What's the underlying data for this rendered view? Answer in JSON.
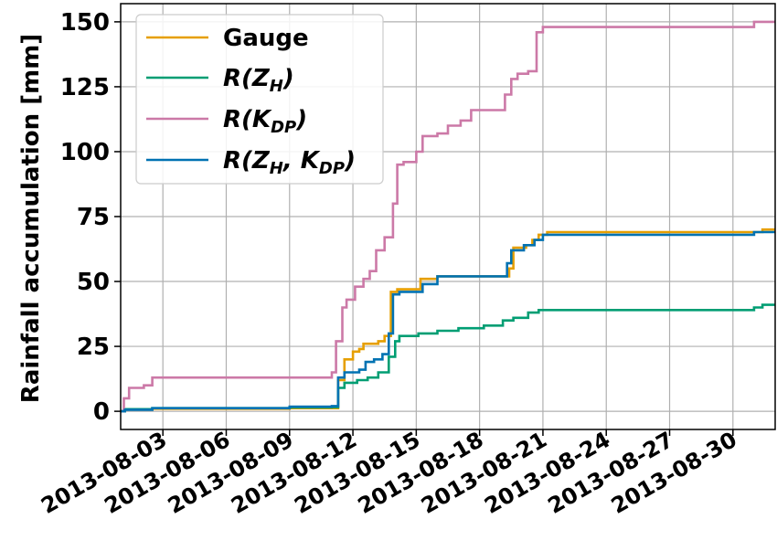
{
  "chart_data": {
    "type": "line",
    "title": "",
    "xlabel": "",
    "ylabel": "Rainfall accumulation [mm]",
    "xlim": [
      "2013-08-01",
      "2013-09-01"
    ],
    "ylim": [
      -7,
      157
    ],
    "yticks": [
      0,
      25,
      50,
      75,
      100,
      125,
      150
    ],
    "xticks": [
      "2013-08-03",
      "2013-08-06",
      "2013-08-09",
      "2013-08-12",
      "2013-08-15",
      "2013-08-18",
      "2013-08-21",
      "2013-08-24",
      "2013-08-27",
      "2013-08-30"
    ],
    "grid": true,
    "legend_position": "top-left",
    "series": [
      {
        "name": "Gauge",
        "legend": {
          "base": "Gauge",
          "sub": ""
        },
        "color": "#E69F00",
        "points": [
          [
            "2013-08-01",
            0
          ],
          [
            "2013-08-01.2",
            0.8
          ],
          [
            "2013-08-02.5",
            1
          ],
          [
            "2013-08-09",
            1.2
          ],
          [
            "2013-08-11.0",
            1.2
          ],
          [
            "2013-08-11.3",
            12
          ],
          [
            "2013-08-11.6",
            20
          ],
          [
            "2013-08-12.0",
            23
          ],
          [
            "2013-08-12.3",
            24
          ],
          [
            "2013-08-12.5",
            26
          ],
          [
            "2013-08-13.2",
            27
          ],
          [
            "2013-08-13.5",
            29
          ],
          [
            "2013-08-13.8",
            46
          ],
          [
            "2013-08-14.1",
            47
          ],
          [
            "2013-08-14.5",
            47
          ],
          [
            "2013-08-15.2",
            51
          ],
          [
            "2013-08-16.0",
            52
          ],
          [
            "2013-08-19.0",
            52
          ],
          [
            "2013-08-19.4",
            55
          ],
          [
            "2013-08-19.6",
            63
          ],
          [
            "2013-08-20.2",
            64
          ],
          [
            "2013-08-20.5",
            66
          ],
          [
            "2013-08-20.8",
            68
          ],
          [
            "2013-08-21.2",
            69
          ],
          [
            "2013-08-31.1",
            69
          ],
          [
            "2013-08-31.4",
            70
          ],
          [
            "2013-09-01",
            70
          ]
        ]
      },
      {
        "name": "R(ZH)",
        "legend": {
          "base": "R(Z",
          "sub": "H",
          "close": ")"
        },
        "color": "#009E73",
        "points": [
          [
            "2013-08-01",
            0
          ],
          [
            "2013-08-01.2",
            0.8
          ],
          [
            "2013-08-02.5",
            1.2
          ],
          [
            "2013-08-09",
            1.5
          ],
          [
            "2013-08-11.0",
            1.6
          ],
          [
            "2013-08-11.3",
            9
          ],
          [
            "2013-08-11.6",
            11
          ],
          [
            "2013-08-12.2",
            12
          ],
          [
            "2013-08-12.7",
            13
          ],
          [
            "2013-08-13.2",
            15
          ],
          [
            "2013-08-13.7",
            21
          ],
          [
            "2013-08-14.0",
            27
          ],
          [
            "2013-08-14.2",
            29
          ],
          [
            "2013-08-15.1",
            30
          ],
          [
            "2013-08-16.0",
            31
          ],
          [
            "2013-08-17.0",
            32
          ],
          [
            "2013-08-18.2",
            33
          ],
          [
            "2013-08-19.1",
            35
          ],
          [
            "2013-08-19.6",
            36
          ],
          [
            "2013-08-20.3",
            38
          ],
          [
            "2013-08-20.8",
            39
          ],
          [
            "2013-08-31.0",
            40
          ],
          [
            "2013-08-31.4",
            41
          ],
          [
            "2013-09-01",
            41
          ]
        ]
      },
      {
        "name": "R(KDP)",
        "legend": {
          "base": "R(K",
          "sub": "DP",
          "close": ")"
        },
        "color": "#CC79A7",
        "points": [
          [
            "2013-08-01",
            0
          ],
          [
            "2013-08-01.15",
            5
          ],
          [
            "2013-08-01.4",
            9
          ],
          [
            "2013-08-02.1",
            10
          ],
          [
            "2013-08-02.5",
            13
          ],
          [
            "2013-08-10.8",
            13
          ],
          [
            "2013-08-11.0",
            15
          ],
          [
            "2013-08-11.2",
            27
          ],
          [
            "2013-08-11.5",
            40
          ],
          [
            "2013-08-11.7",
            43
          ],
          [
            "2013-08-12.1",
            48
          ],
          [
            "2013-08-12.5",
            51
          ],
          [
            "2013-08-12.8",
            54
          ],
          [
            "2013-08-13.1",
            62
          ],
          [
            "2013-08-13.5",
            67
          ],
          [
            "2013-08-13.9",
            80
          ],
          [
            "2013-08-14.1",
            95
          ],
          [
            "2013-08-14.4",
            96
          ],
          [
            "2013-08-15.0",
            100
          ],
          [
            "2013-08-15.3",
            106
          ],
          [
            "2013-08-16.0",
            107
          ],
          [
            "2013-08-16.5",
            110
          ],
          [
            "2013-08-17.1",
            112
          ],
          [
            "2013-08-17.6",
            116
          ],
          [
            "2013-08-19.0",
            116
          ],
          [
            "2013-08-19.2",
            122
          ],
          [
            "2013-08-19.5",
            128
          ],
          [
            "2013-08-19.8",
            130
          ],
          [
            "2013-08-20.3",
            131
          ],
          [
            "2013-08-20.7",
            146
          ],
          [
            "2013-08-21.0",
            148
          ],
          [
            "2013-08-30.8",
            148
          ],
          [
            "2013-08-31.0",
            150
          ],
          [
            "2013-09-01",
            150
          ]
        ]
      },
      {
        "name": "R(ZH, KDP)",
        "legend": {
          "base": "R(Z",
          "sub": "H",
          "mid": ", K",
          "sub2": "DP",
          "close": ")"
        },
        "color": "#0072B2",
        "points": [
          [
            "2013-08-01",
            0
          ],
          [
            "2013-08-01.2",
            0.6
          ],
          [
            "2013-08-02.5",
            1.2
          ],
          [
            "2013-08-09",
            1.8
          ],
          [
            "2013-08-11.0",
            2
          ],
          [
            "2013-08-11.3",
            13
          ],
          [
            "2013-08-11.6",
            15
          ],
          [
            "2013-08-12.3",
            16
          ],
          [
            "2013-08-12.6",
            19
          ],
          [
            "2013-08-13.0",
            20
          ],
          [
            "2013-08-13.4",
            22
          ],
          [
            "2013-08-13.7",
            30
          ],
          [
            "2013-08-13.9",
            45
          ],
          [
            "2013-08-14.2",
            46
          ],
          [
            "2013-08-15.0",
            46
          ],
          [
            "2013-08-15.3",
            49
          ],
          [
            "2013-08-16.0",
            52
          ],
          [
            "2013-08-19.0",
            52
          ],
          [
            "2013-08-19.3",
            57
          ],
          [
            "2013-08-19.5",
            62
          ],
          [
            "2013-08-20.1",
            64
          ],
          [
            "2013-08-20.6",
            66
          ],
          [
            "2013-08-21.0",
            68
          ],
          [
            "2013-08-31.0",
            69
          ],
          [
            "2013-09-01",
            69
          ]
        ]
      }
    ]
  }
}
